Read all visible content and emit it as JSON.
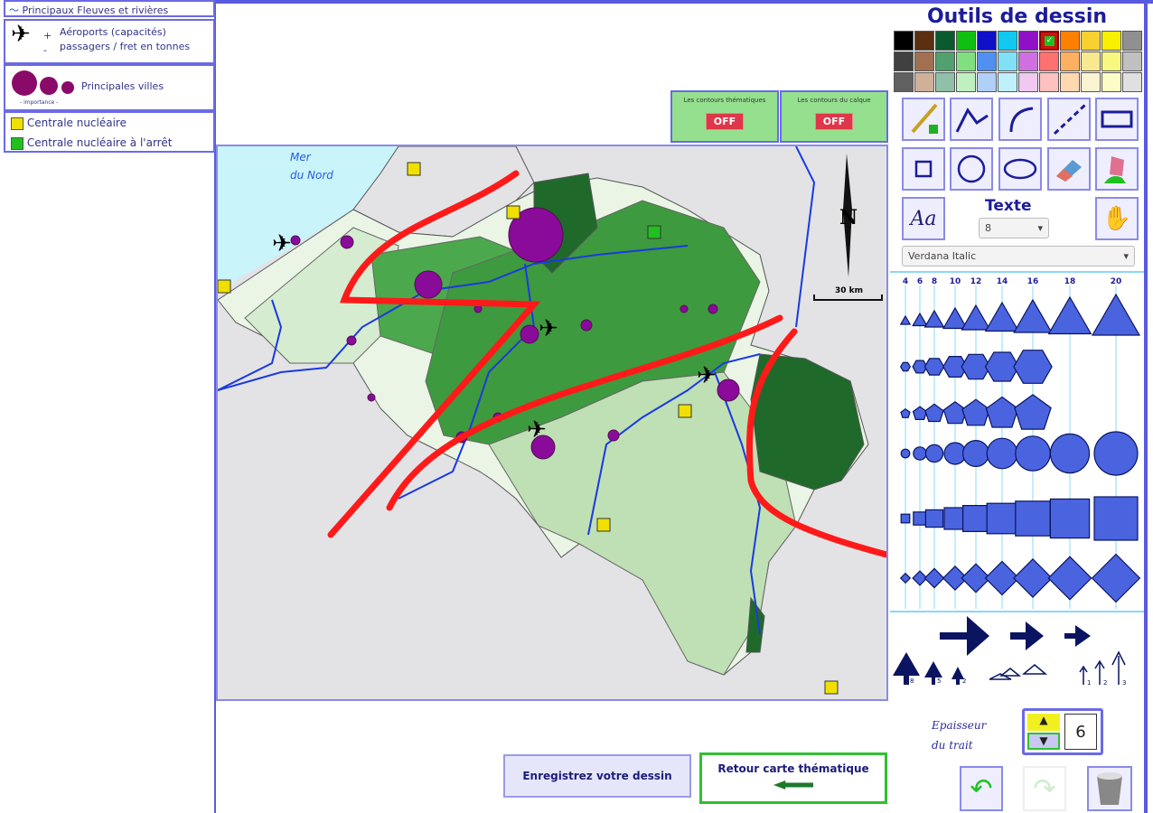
{
  "legend": {
    "rivers": "Principaux Fleuves et rivières",
    "airports_line1": "Aéroports (capacités)",
    "airports_line2": "passagers / fret en tonnes",
    "airports_plus": "+",
    "airports_minus": "-",
    "cities": "Principales villes",
    "cities_sub": "- importance -",
    "nuclear": "Centrale nucléaire",
    "nuclear_stopped": "Centrale nucléaire à l'arrêt"
  },
  "toggles": [
    {
      "label": "Les contours thématiques",
      "state": "OFF"
    },
    {
      "label": "Les contours du calque",
      "state": "OFF"
    }
  ],
  "map": {
    "sea_label_1": "Mer",
    "sea_label_2": "du Nord",
    "north": "N",
    "scale": "30 km",
    "line_color": "#ff1a1a"
  },
  "tools": {
    "title": "Outils de dessin",
    "palette": [
      [
        "#000000",
        "#5a3010",
        "#0a5a30",
        "#10c010",
        "#1010c8",
        "#10c8f0",
        "#9010c8",
        "#d01010",
        "#ff8000",
        "#f8d030",
        "#f8f000",
        "#909090"
      ],
      [
        "#404040",
        "#a07050",
        "#50a070",
        "#80e080",
        "#5090f0",
        "#80e0f8",
        "#d070e0",
        "#ff7070",
        "#ffb060",
        "#f8e890",
        "#f8f880",
        "#c0c0c0"
      ],
      [
        "#606060",
        "#d0b098",
        "#90c0a8",
        "#c0f0c0",
        "#b0d0f8",
        "#c0f0fc",
        "#f0c8f0",
        "#ffc0c0",
        "#ffd8b0",
        "#fcf4d0",
        "#fcfcc8",
        "#e0e0e0"
      ]
    ],
    "selected_color": "#d01010",
    "buttons": [
      "pencil",
      "polyline",
      "curve",
      "dashed-line",
      "rectangle",
      "square",
      "circle",
      "ellipse",
      "eraser",
      "paint-bucket"
    ],
    "text_label": "Texte",
    "text_size": "8",
    "font": "Verdana Italic",
    "sizes": [
      "4",
      "6",
      "8",
      "10",
      "12",
      "14",
      "16",
      "18",
      "20"
    ],
    "shape_rows": [
      "triangle",
      "hexagon",
      "pentagon",
      "circle",
      "square",
      "diamond"
    ],
    "arrow_labels": [
      "8",
      "5",
      "2",
      "1",
      "2",
      "3"
    ],
    "thickness_label_1": "Epaisseur",
    "thickness_label_2": "du trait",
    "thickness": "6"
  },
  "bottom": {
    "save": "Enregistrez votre dessin",
    "back": "Retour carte thématique"
  }
}
